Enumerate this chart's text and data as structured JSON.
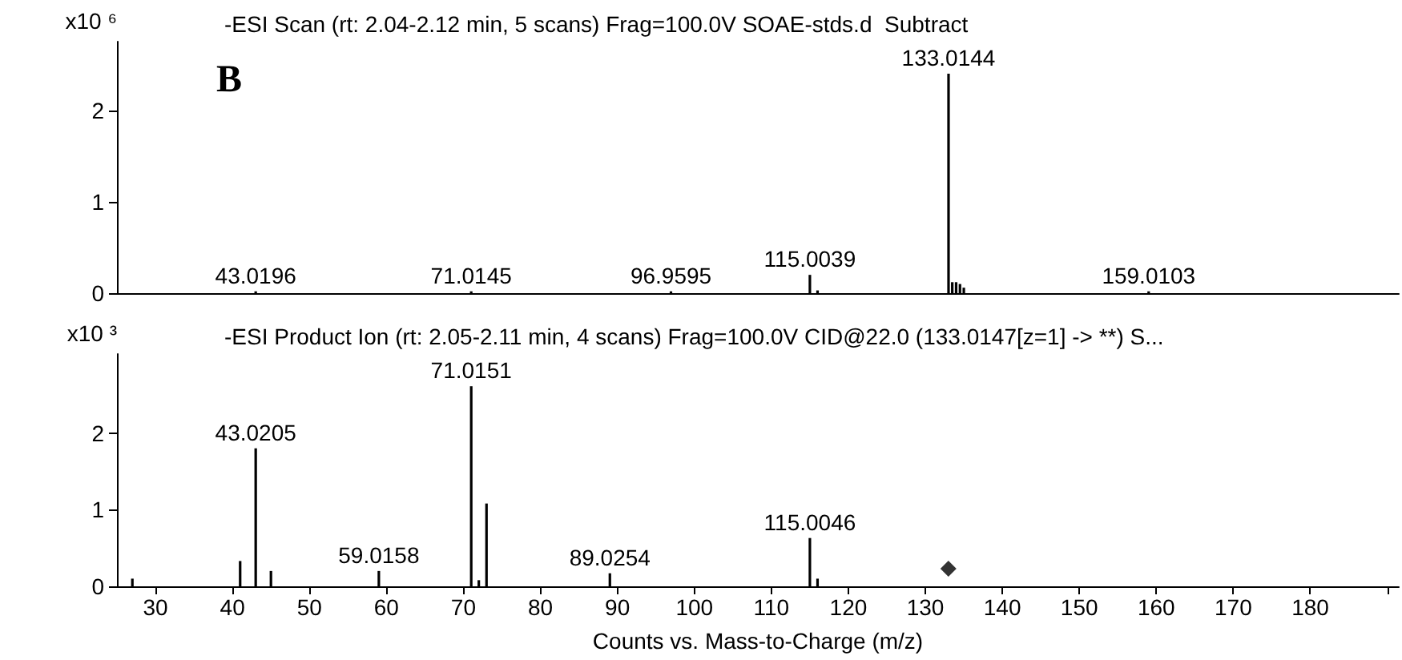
{
  "chart_data": [
    {
      "type": "bar",
      "title": "-ESI Scan (rt: 2.04-2.12 min, 5 scans) Frag=100.0V SOAE-stds.d  Subtract",
      "ylabel": "x10 ⁶",
      "x": [
        43.0196,
        71.0145,
        96.9595,
        115.0039,
        116.0,
        133.0144,
        133.5,
        134.0,
        134.5,
        135.0,
        159.0103
      ],
      "series": [
        {
          "color": "#000000",
          "values": [
            0.02,
            0.02,
            0.02,
            0.2,
            0.03,
            2.4,
            0.12,
            0.12,
            0.1,
            0.06,
            0.02
          ]
        }
      ],
      "xlim": [
        25,
        191.5
      ],
      "ylim": [
        0,
        2.75
      ],
      "yticks": [
        0,
        1,
        2
      ],
      "tick_labels": "y",
      "annotations": [
        "B",
        {
          "text": "43.0196",
          "x": 43.0196,
          "y": 0.02
        },
        {
          "text": "71.0145",
          "x": 71.0145,
          "y": 0.02
        },
        {
          "text": "96.9595",
          "x": 96.9595,
          "y": 0.02
        },
        {
          "text": "115.0039",
          "x": 115.0039,
          "y": 0.2
        },
        {
          "text": "133.0144",
          "x": 133.0144,
          "y": 2.4
        },
        {
          "text": "159.0103",
          "x": 159.0103,
          "y": 0.02
        }
      ]
    },
    {
      "type": "bar",
      "title": "-ESI Product Ion (rt: 2.05-2.11 min, 4 scans) Frag=100.0V CID@22.0 (133.0147[z=1] -> **) S...",
      "ylabel": "x10 ³",
      "xlabel": "Counts vs. Mass-to-Charge (m/z)",
      "series": [
        {
          "color": "#000000",
          "x": [
            27,
            41,
            43.0205,
            45,
            59.0158,
            71.0151,
            72,
            73,
            89.0254,
            115.0046,
            116
          ],
          "values": [
            0.1,
            0.33,
            1.8,
            0.2,
            0.2,
            2.61,
            0.08,
            1.08,
            0.17,
            0.63,
            0.1
          ]
        },
        {
          "type": "scatter",
          "marker": "diamond",
          "color": "#000000",
          "x": [
            133
          ],
          "values": [
            0.23
          ]
        }
      ],
      "xlim": [
        25,
        191.5
      ],
      "xticks": [
        30,
        40,
        50,
        60,
        70,
        80,
        90,
        100,
        110,
        120,
        130,
        140,
        150,
        160,
        170,
        180,
        {
          "value": 190,
          "label": null
        }
      ],
      "ylim": [
        0,
        3.03
      ],
      "yticks": [
        0,
        1,
        2
      ],
      "annotations": [
        {
          "text": "43.0205",
          "x": 43.0205,
          "y": 1.8
        },
        {
          "text": "59.0158",
          "x": 59.0158,
          "y": 0.2
        },
        {
          "text": "71.0151",
          "x": 71.0151,
          "y": 2.61
        },
        {
          "text": "89.0254",
          "x": 89.0254,
          "y": 0.17
        },
        {
          "text": "115.0046",
          "x": 115.0046,
          "y": 0.63
        }
      ]
    }
  ]
}
